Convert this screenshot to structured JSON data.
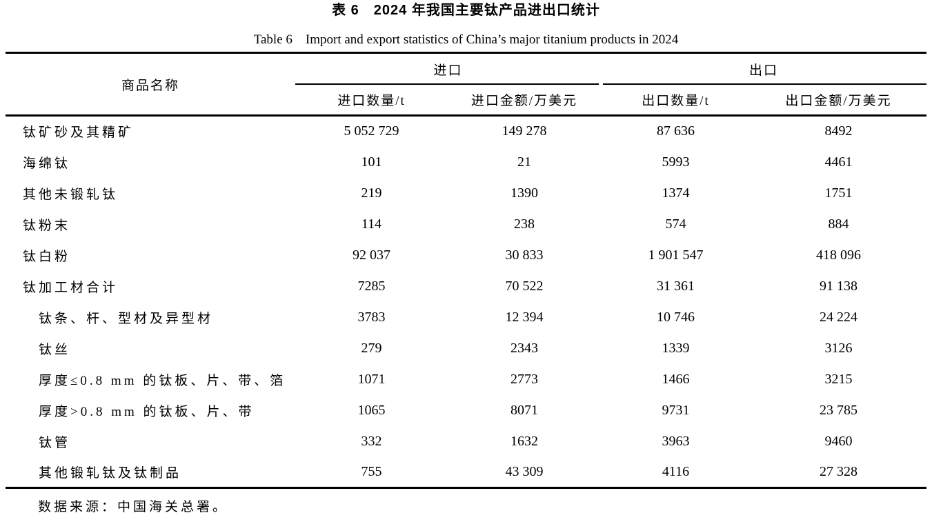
{
  "table": {
    "title_zh": "表 6　2024 年我国主要钛产品进出口统计",
    "title_en": "Table 6　Import and export statistics of China’s major titanium products in 2024",
    "col_product": "商品名称",
    "group_import": "进口",
    "group_export": "出口",
    "sub_headers": {
      "import_qty": "进口数量/t",
      "import_val": "进口金额/万美元",
      "export_qty": "出口数量/t",
      "export_val": "出口金额/万美元"
    },
    "rows": [
      {
        "name": "钛矿砂及其精矿",
        "indent": false,
        "import_qty": "5 052 729",
        "import_val": "149 278",
        "export_qty": "87 636",
        "export_val": "8492"
      },
      {
        "name": "海绵钛",
        "indent": false,
        "import_qty": "101",
        "import_val": "21",
        "export_qty": "5993",
        "export_val": "4461"
      },
      {
        "name": "其他未锻轧钛",
        "indent": false,
        "import_qty": "219",
        "import_val": "1390",
        "export_qty": "1374",
        "export_val": "1751"
      },
      {
        "name": "钛粉末",
        "indent": false,
        "import_qty": "114",
        "import_val": "238",
        "export_qty": "574",
        "export_val": "884"
      },
      {
        "name": "钛白粉",
        "indent": false,
        "import_qty": "92 037",
        "import_val": "30 833",
        "export_qty": "1 901 547",
        "export_val": "418 096"
      },
      {
        "name": "钛加工材合计",
        "indent": false,
        "import_qty": "7285",
        "import_val": "70 522",
        "export_qty": "31 361",
        "export_val": "91 138"
      },
      {
        "name": "钛条、杆、型材及异型材",
        "indent": true,
        "import_qty": "3783",
        "import_val": "12 394",
        "export_qty": "10 746",
        "export_val": "24 224"
      },
      {
        "name": "钛丝",
        "indent": true,
        "import_qty": "279",
        "import_val": "2343",
        "export_qty": "1339",
        "export_val": "3126"
      },
      {
        "name": "厚度≤0.8 mm 的钛板、片、带、箔",
        "indent": true,
        "import_qty": "1071",
        "import_val": "2773",
        "export_qty": "1466",
        "export_val": "3215"
      },
      {
        "name": "厚度>0.8 mm 的钛板、片、带",
        "indent": true,
        "import_qty": "1065",
        "import_val": "8071",
        "export_qty": "9731",
        "export_val": "23 785"
      },
      {
        "name": "钛管",
        "indent": true,
        "import_qty": "332",
        "import_val": "1632",
        "export_qty": "3963",
        "export_val": "9460"
      },
      {
        "name": "其他锻轧钛及钛制品",
        "indent": true,
        "import_qty": "755",
        "import_val": "43 309",
        "export_qty": "4116",
        "export_val": "27 328"
      }
    ],
    "source_note": "数据来源：中国海关总署。"
  },
  "chart_data": {
    "type": "table",
    "title": "表 6　2024 年我国主要钛产品进出口统计 (Table 6　Import and export statistics of China’s major titanium products in 2024)",
    "columns": [
      "商品名称",
      "进口数量/t",
      "进口金额/万美元",
      "出口数量/t",
      "出口金额/万美元"
    ],
    "rows": [
      [
        "钛矿砂及其精矿",
        5052729,
        149278,
        87636,
        8492
      ],
      [
        "海绵钛",
        101,
        21,
        5993,
        4461
      ],
      [
        "其他未锻轧钛",
        219,
        1390,
        1374,
        1751
      ],
      [
        "钛粉末",
        114,
        238,
        574,
        884
      ],
      [
        "钛白粉",
        92037,
        30833,
        1901547,
        418096
      ],
      [
        "钛加工材合计",
        7285,
        70522,
        31361,
        91138
      ],
      [
        "钛条、杆、型材及异型材",
        3783,
        12394,
        10746,
        24224
      ],
      [
        "钛丝",
        279,
        2343,
        1339,
        3126
      ],
      [
        "厚度≤0.8 mm 的钛板、片、带、箔",
        1071,
        2773,
        1466,
        3215
      ],
      [
        "厚度>0.8 mm 的钛板、片、带",
        1065,
        8071,
        9731,
        23785
      ],
      [
        "钛管",
        332,
        1632,
        3963,
        9460
      ],
      [
        "其他锻轧钛及钛制品",
        755,
        43309,
        4116,
        27328
      ]
    ],
    "source_note": "数据来源：中国海关总署。"
  }
}
